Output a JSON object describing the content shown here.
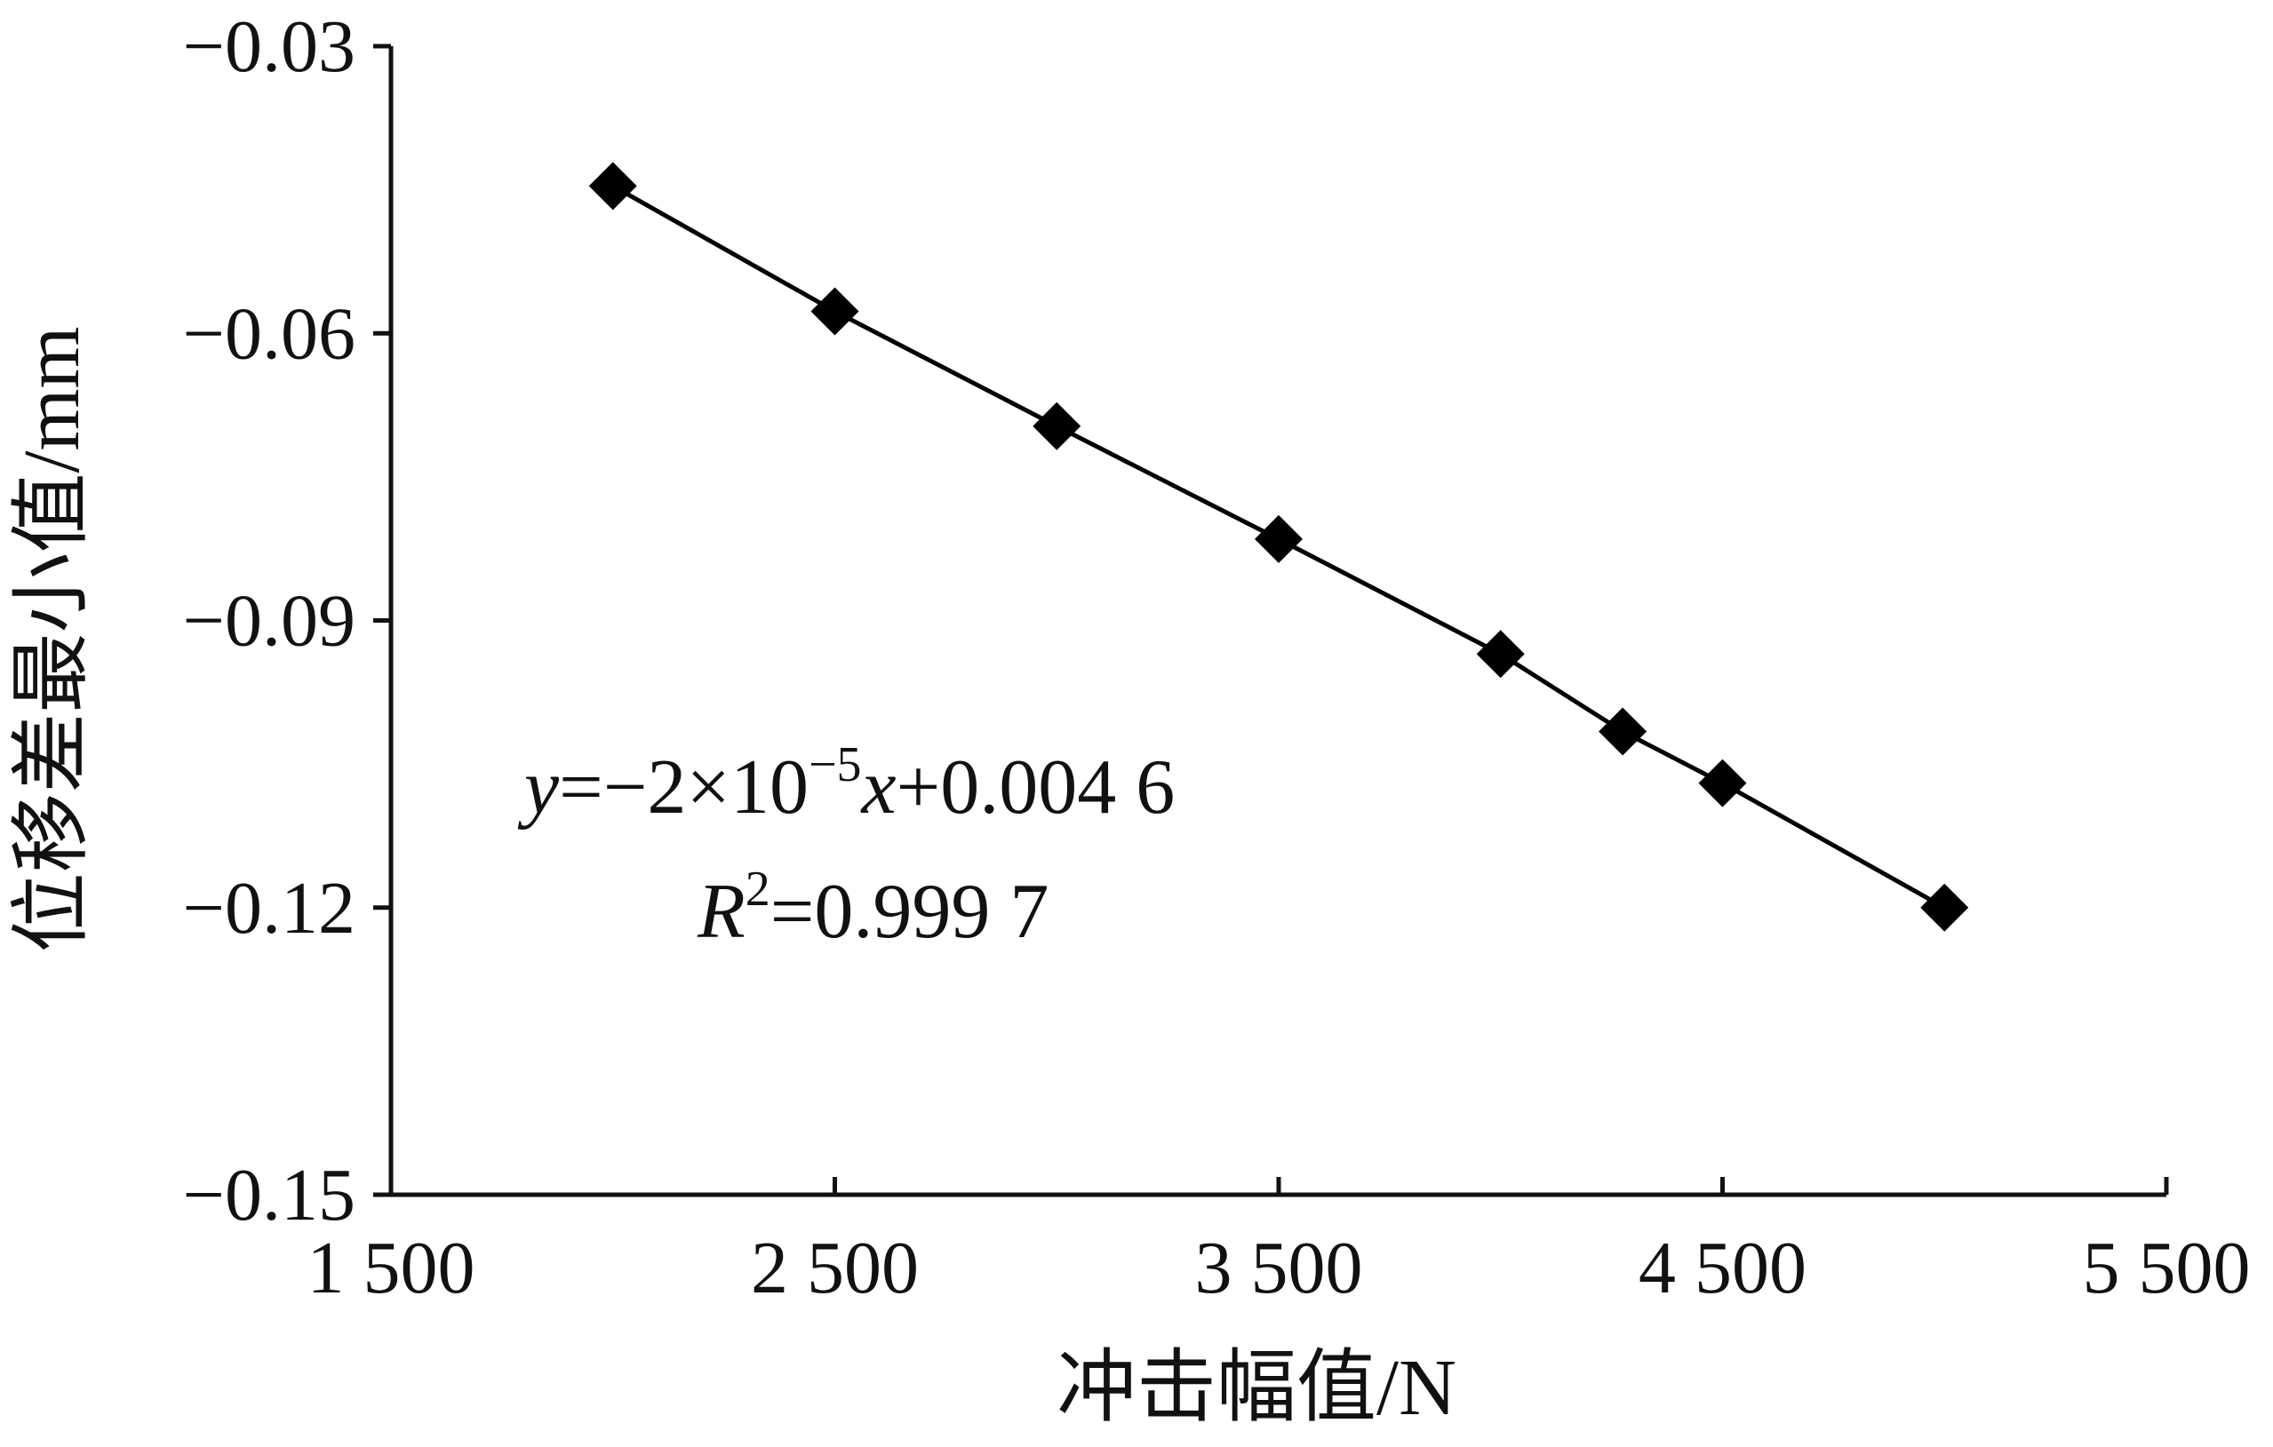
{
  "chart_data": {
    "type": "line",
    "title": "",
    "xlabel": "冲击幅值/N",
    "ylabel": "位移差最小值/mm",
    "xlim": [
      1500,
      5500
    ],
    "ylim": [
      -0.15,
      -0.03
    ],
    "xticks": [
      1500,
      2500,
      3500,
      4500,
      5500
    ],
    "xtick_labels": [
      "1 500",
      "2 500",
      "3 500",
      "4 500",
      "5 500"
    ],
    "yticks": [
      -0.03,
      -0.06,
      -0.09,
      -0.12,
      -0.15
    ],
    "ytick_labels": [
      "−0.03",
      "−0.06",
      "−0.09",
      "−0.12",
      "−0.15"
    ],
    "grid": false,
    "marker": "diamond",
    "series": [
      {
        "name": "",
        "color": "#000000",
        "x": [
          2000,
          2500,
          3000,
          3500,
          4000,
          4275,
          4500,
          5000
        ],
        "y": [
          -0.0446,
          -0.0577,
          -0.0697,
          -0.0815,
          -0.0935,
          -0.1016,
          -0.107,
          -0.12
        ]
      }
    ],
    "annotation": {
      "equation": {
        "y_var": "y",
        "eq_part1": "=−2×10",
        "exp": "−5",
        "x_var": "x",
        "eq_part2": "+0.004 6"
      },
      "r2": {
        "r_var": "R",
        "exp": "2",
        "value": "=0.999 7"
      }
    }
  }
}
